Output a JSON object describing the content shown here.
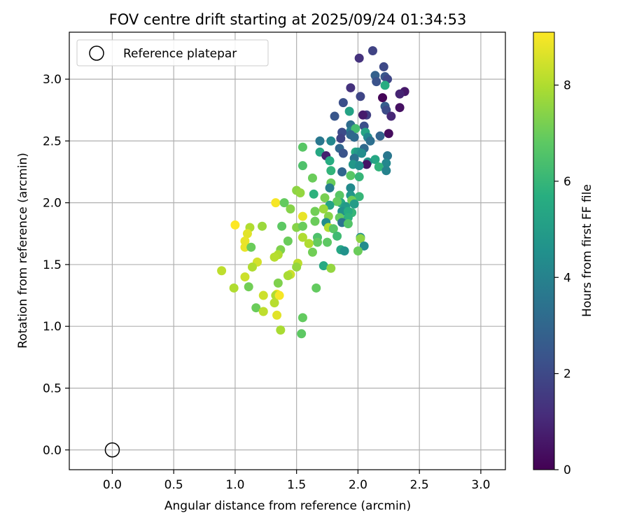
{
  "chart_data": {
    "type": "scatter",
    "title": "FOV centre drift starting at 2025/09/24 01:34:53",
    "xlabel": "Angular distance from reference (arcmin)",
    "ylabel": "Rotation from reference (arcmin)",
    "xlim": [
      -0.35,
      3.2
    ],
    "ylim": [
      -0.16,
      3.38
    ],
    "xticks": [
      0.0,
      0.5,
      1.0,
      1.5,
      2.0,
      2.5,
      3.0
    ],
    "xtick_labels": [
      "0.0",
      "0.5",
      "1.0",
      "1.5",
      "2.0",
      "2.5",
      "3.0"
    ],
    "yticks": [
      0.0,
      0.5,
      1.0,
      1.5,
      2.0,
      2.5,
      3.0
    ],
    "ytick_labels": [
      "0.0",
      "0.5",
      "1.0",
      "1.5",
      "2.0",
      "2.5",
      "3.0"
    ],
    "grid": true,
    "legend": {
      "placement": "top-left",
      "entries": [
        "Reference platepar"
      ]
    },
    "reference_point": {
      "name": "Reference platepar",
      "x": 0.0,
      "y": 0.0,
      "marker": "open-circle"
    },
    "colorbar": {
      "label": "Hours from first FF file",
      "colormap": "viridis",
      "range": [
        0,
        9.1
      ],
      "ticks": [
        0,
        2,
        4,
        6,
        8
      ],
      "tick_labels": [
        "0",
        "2",
        "4",
        "6",
        "8"
      ]
    },
    "points": [
      [
        2.12,
        3.23,
        1.8
      ],
      [
        2.01,
        3.17,
        1.3
      ],
      [
        2.21,
        3.1,
        2.0
      ],
      [
        2.14,
        3.03,
        2.8
      ],
      [
        2.22,
        3.02,
        2.4
      ],
      [
        2.24,
        3.0,
        1.9
      ],
      [
        2.15,
        2.98,
        2.3
      ],
      [
        2.22,
        2.95,
        5.6
      ],
      [
        1.94,
        2.93,
        1.3
      ],
      [
        2.38,
        2.9,
        0.6
      ],
      [
        2.34,
        2.88,
        0.9
      ],
      [
        2.2,
        2.85,
        0.1
      ],
      [
        2.02,
        2.86,
        1.9
      ],
      [
        1.88,
        2.81,
        2.2
      ],
      [
        2.22,
        2.78,
        2.7
      ],
      [
        2.34,
        2.77,
        0.4
      ],
      [
        2.23,
        2.75,
        2.1
      ],
      [
        1.93,
        2.74,
        5.2
      ],
      [
        2.07,
        2.71,
        1.7
      ],
      [
        2.04,
        2.71,
        0.7
      ],
      [
        2.27,
        2.7,
        1.0
      ],
      [
        1.81,
        2.7,
        2.4
      ],
      [
        2.05,
        2.62,
        2.2
      ],
      [
        1.94,
        2.63,
        3.2
      ],
      [
        1.94,
        2.58,
        3.8
      ],
      [
        1.98,
        2.6,
        6.3
      ],
      [
        1.87,
        2.57,
        2.1
      ],
      [
        2.06,
        2.57,
        5.3
      ],
      [
        2.25,
        2.56,
        0.3
      ],
      [
        2.18,
        2.54,
        2.9
      ],
      [
        2.08,
        2.53,
        4.2
      ],
      [
        1.94,
        2.55,
        3.0
      ],
      [
        1.97,
        2.53,
        3.1
      ],
      [
        1.86,
        2.52,
        1.8
      ],
      [
        1.69,
        2.5,
        3.6
      ],
      [
        1.78,
        2.5,
        4.2
      ],
      [
        2.1,
        2.5,
        3.3
      ],
      [
        2.05,
        2.44,
        3.1
      ],
      [
        1.55,
        2.45,
        6.7
      ],
      [
        1.85,
        2.44,
        3.0
      ],
      [
        1.98,
        2.41,
        5.6
      ],
      [
        2.0,
        2.41,
        4.8
      ],
      [
        1.69,
        2.41,
        5.4
      ],
      [
        1.88,
        2.4,
        2.3
      ],
      [
        2.03,
        2.4,
        4.4
      ],
      [
        2.24,
        2.38,
        3.6
      ],
      [
        1.74,
        2.38,
        0.8
      ],
      [
        1.97,
        2.36,
        3.4
      ],
      [
        2.14,
        2.35,
        5.4
      ],
      [
        2.08,
        2.33,
        4.7
      ],
      [
        2.07,
        2.31,
        0.5
      ],
      [
        1.77,
        2.34,
        5.6
      ],
      [
        1.96,
        2.31,
        4.8
      ],
      [
        2.01,
        2.3,
        4.4
      ],
      [
        2.23,
        2.32,
        4.2
      ],
      [
        1.55,
        2.3,
        6.5
      ],
      [
        2.17,
        2.29,
        5.9
      ],
      [
        2.23,
        2.26,
        4.0
      ],
      [
        1.78,
        2.26,
        5.9
      ],
      [
        1.87,
        2.25,
        3.0
      ],
      [
        1.94,
        2.22,
        6.7
      ],
      [
        2.01,
        2.21,
        6.0
      ],
      [
        1.63,
        2.2,
        7.0
      ],
      [
        1.78,
        2.16,
        7.0
      ],
      [
        1.77,
        2.12,
        3.8
      ],
      [
        1.94,
        2.12,
        4.3
      ],
      [
        1.5,
        2.1,
        7.5
      ],
      [
        1.53,
        2.08,
        7.6
      ],
      [
        1.64,
        2.07,
        5.8
      ],
      [
        1.94,
        2.06,
        4.8
      ],
      [
        1.85,
        2.06,
        6.7
      ],
      [
        2.01,
        2.05,
        6.0
      ],
      [
        1.73,
        2.04,
        7.2
      ],
      [
        1.86,
        2.0,
        5.5
      ],
      [
        1.83,
        2.01,
        6.9
      ],
      [
        1.95,
        2.02,
        7.0
      ],
      [
        1.33,
        2.0,
        9.0
      ],
      [
        1.4,
        2.0,
        6.9
      ],
      [
        1.97,
        1.99,
        5.0
      ],
      [
        1.77,
        1.98,
        5.2
      ],
      [
        1.72,
        1.95,
        7.7
      ],
      [
        1.9,
        1.97,
        4.9
      ],
      [
        1.45,
        1.95,
        7.4
      ],
      [
        1.65,
        1.93,
        7.1
      ],
      [
        1.87,
        1.93,
        4.6
      ],
      [
        1.95,
        1.92,
        6.0
      ],
      [
        1.92,
        1.93,
        5.6
      ],
      [
        1.55,
        1.89,
        8.8
      ],
      [
        1.85,
        1.88,
        6.9
      ],
      [
        1.76,
        1.89,
        7.4
      ],
      [
        1.92,
        1.88,
        5.8
      ],
      [
        1.74,
        1.84,
        4.4
      ],
      [
        1.65,
        1.85,
        7.0
      ],
      [
        1.87,
        1.84,
        3.5
      ],
      [
        1.92,
        1.83,
        6.6
      ],
      [
        1.5,
        1.8,
        7.4
      ],
      [
        1.38,
        1.81,
        6.8
      ],
      [
        1.22,
        1.81,
        7.7
      ],
      [
        1.0,
        1.82,
        9.1
      ],
      [
        1.12,
        1.8,
        8.0
      ],
      [
        1.76,
        1.8,
        8.0
      ],
      [
        1.55,
        1.81,
        7.0
      ],
      [
        1.8,
        1.79,
        6.7
      ],
      [
        1.1,
        1.75,
        8.7
      ],
      [
        1.83,
        1.73,
        6.2
      ],
      [
        1.67,
        1.72,
        6.5
      ],
      [
        2.02,
        1.72,
        4.5
      ],
      [
        1.55,
        1.72,
        8.0
      ],
      [
        2.02,
        1.71,
        7.5
      ],
      [
        1.08,
        1.69,
        8.8
      ],
      [
        1.43,
        1.69,
        7.0
      ],
      [
        1.67,
        1.68,
        6.9
      ],
      [
        1.75,
        1.68,
        6.8
      ],
      [
        1.6,
        1.67,
        8.0
      ],
      [
        2.05,
        1.65,
        4.4
      ],
      [
        1.08,
        1.64,
        8.8
      ],
      [
        1.13,
        1.64,
        7.0
      ],
      [
        1.37,
        1.62,
        7.3
      ],
      [
        1.86,
        1.62,
        5.4
      ],
      [
        1.89,
        1.61,
        4.6
      ],
      [
        2.0,
        1.61,
        7.0
      ],
      [
        1.63,
        1.6,
        7.1
      ],
      [
        1.35,
        1.58,
        8.0
      ],
      [
        1.32,
        1.56,
        8.1
      ],
      [
        1.18,
        1.52,
        8.5
      ],
      [
        1.51,
        1.51,
        8.2
      ],
      [
        1.14,
        1.48,
        8.0
      ],
      [
        1.72,
        1.49,
        5.5
      ],
      [
        1.5,
        1.48,
        7.6
      ],
      [
        1.78,
        1.47,
        7.6
      ],
      [
        0.89,
        1.45,
        8.2
      ],
      [
        1.45,
        1.42,
        8.4
      ],
      [
        1.43,
        1.41,
        7.9
      ],
      [
        1.08,
        1.4,
        8.4
      ],
      [
        1.35,
        1.35,
        7.3
      ],
      [
        1.11,
        1.32,
        7.1
      ],
      [
        1.66,
        1.31,
        6.9
      ],
      [
        0.99,
        1.31,
        8.0
      ],
      [
        1.34,
        1.26,
        8.9
      ],
      [
        1.33,
        1.25,
        8.0
      ],
      [
        1.23,
        1.25,
        8.4
      ],
      [
        1.36,
        1.25,
        9.0
      ],
      [
        1.32,
        1.19,
        8.1
      ],
      [
        1.17,
        1.15,
        7.0
      ],
      [
        1.23,
        1.12,
        8.2
      ],
      [
        1.34,
        1.09,
        8.7
      ],
      [
        1.55,
        1.07,
        6.9
      ],
      [
        1.37,
        0.97,
        7.9
      ],
      [
        1.54,
        0.94,
        6.8
      ]
    ]
  }
}
